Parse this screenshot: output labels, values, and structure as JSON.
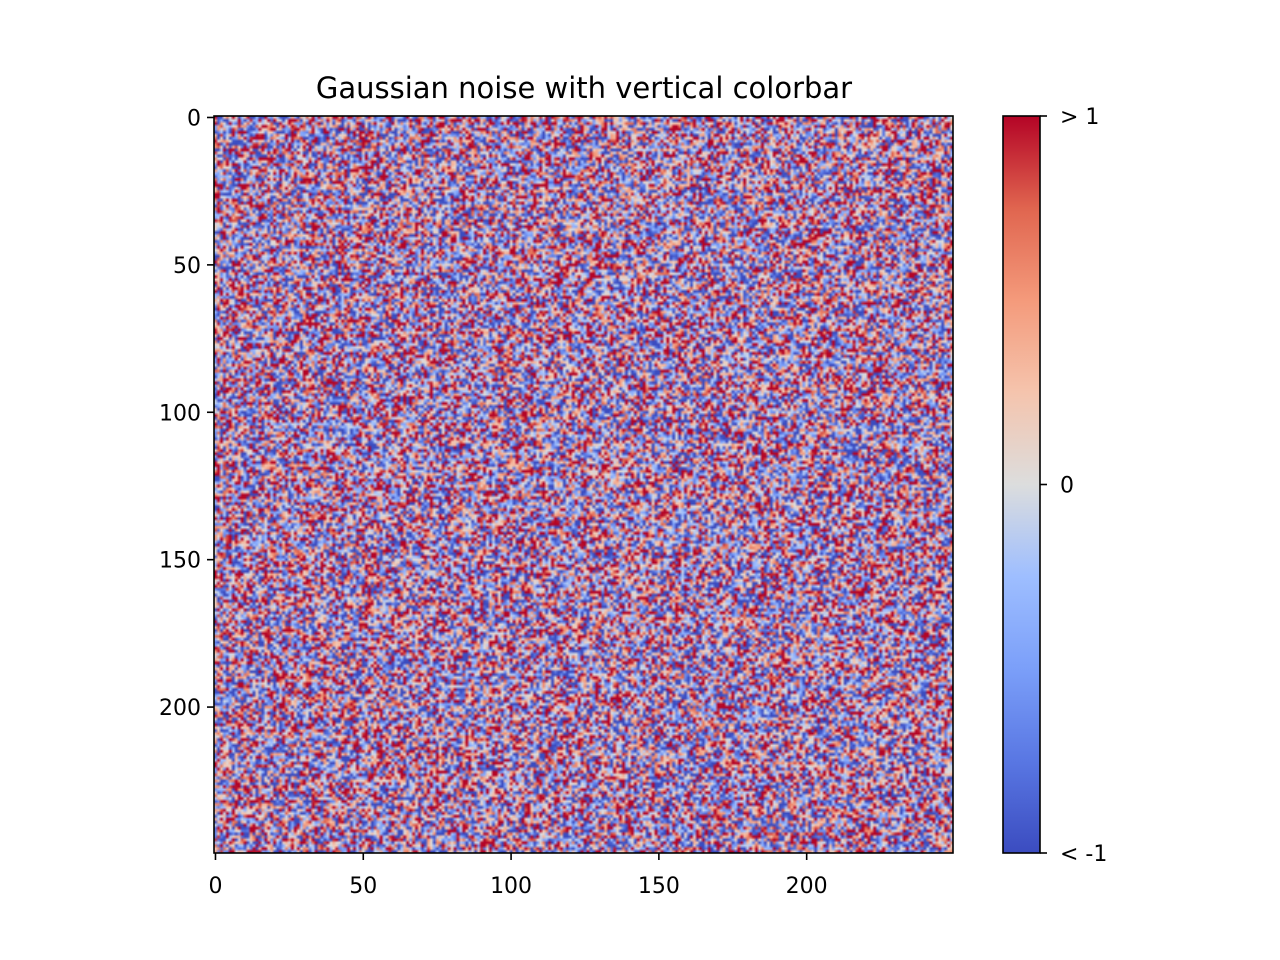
{
  "chart_data": {
    "type": "heatmap",
    "title": "Gaussian noise with vertical colorbar",
    "xlabel": "",
    "ylabel": "",
    "shape": [
      250,
      250
    ],
    "distribution": "standard normal noise",
    "xlim": [
      -0.5,
      249.5
    ],
    "ylim": [
      249.5,
      -0.5
    ],
    "x_ticks": [
      0,
      50,
      100,
      150,
      200
    ],
    "x_tick_labels": [
      "0",
      "50",
      "100",
      "150",
      "200"
    ],
    "y_ticks": [
      0,
      50,
      100,
      150,
      200
    ],
    "y_tick_labels": [
      "0",
      "50",
      "100",
      "150",
      "200"
    ],
    "colormap": "coolwarm",
    "clim": [
      -1,
      1
    ],
    "colorbar": {
      "orientation": "vertical",
      "placement": "right",
      "ticks": [
        -1,
        0,
        1
      ],
      "tick_labels": [
        "< -1",
        "0",
        "> 1"
      ]
    },
    "colormap_stops": [
      "#3b4cc0",
      "#5977e3",
      "#7b9ff9",
      "#9ebeff",
      "#dcdddd",
      "#f5c4ad",
      "#f49a7b",
      "#e0654f",
      "#b40426"
    ],
    "grid": false
  }
}
